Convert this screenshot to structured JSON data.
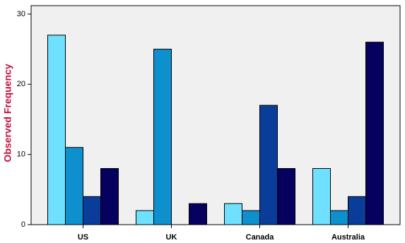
{
  "chart_data": {
    "type": "bar",
    "y_label": "Observed Frequency",
    "categories": [
      "US",
      "UK",
      "Canada",
      "Australia"
    ],
    "series": [
      {
        "color": "#6fe0ff",
        "values": [
          27,
          2,
          3,
          8
        ]
      },
      {
        "color": "#0e8fce",
        "values": [
          11,
          25,
          2,
          2
        ]
      },
      {
        "color": "#0a3d9a",
        "values": [
          4,
          0,
          17,
          4
        ]
      },
      {
        "color": "#06005e",
        "values": [
          8,
          3,
          8,
          26
        ]
      }
    ],
    "ylim": [
      0,
      31.2
    ],
    "yticks": [
      0,
      10,
      20,
      30
    ],
    "grid": false
  }
}
